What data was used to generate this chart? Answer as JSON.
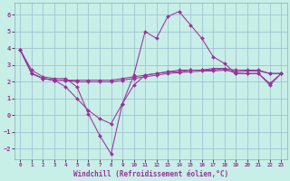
{
  "background_color": "#c8eee8",
  "grid_color": "#99bbcc",
  "line_color": "#993399",
  "xlim_min": -0.5,
  "xlim_max": 23.5,
  "ylim_min": -2.6,
  "ylim_max": 6.7,
  "xticks": [
    0,
    1,
    2,
    3,
    4,
    5,
    6,
    7,
    8,
    9,
    10,
    11,
    12,
    13,
    14,
    15,
    16,
    17,
    18,
    19,
    20,
    21,
    22,
    23
  ],
  "yticks": [
    -2,
    -1,
    0,
    1,
    2,
    3,
    4,
    5,
    6
  ],
  "xlabel": "Windchill (Refroidissement éolien,°C)",
  "series": [
    [
      3.9,
      2.7,
      2.3,
      2.2,
      2.2,
      1.7,
      0.1,
      -1.2,
      -2.3,
      0.7,
      2.4,
      5.0,
      4.6,
      5.9,
      6.2,
      5.4,
      4.6,
      3.5,
      3.1,
      2.5,
      2.5,
      2.5,
      1.8,
      2.5
    ],
    [
      3.9,
      2.5,
      2.2,
      2.1,
      1.7,
      1.0,
      0.3,
      -0.2,
      -0.5,
      0.7,
      1.8,
      2.4,
      2.5,
      2.6,
      2.7,
      2.7,
      2.7,
      2.8,
      2.8,
      2.5,
      2.5,
      2.5,
      1.9,
      2.5
    ],
    [
      3.9,
      2.5,
      2.2,
      2.1,
      2.1,
      2.1,
      2.1,
      2.1,
      2.1,
      2.2,
      2.3,
      2.4,
      2.5,
      2.6,
      2.6,
      2.7,
      2.7,
      2.7,
      2.8,
      2.7,
      2.7,
      2.7,
      2.5,
      2.5
    ],
    [
      3.9,
      2.5,
      2.2,
      2.1,
      2.1,
      2.0,
      2.0,
      2.0,
      2.0,
      2.1,
      2.2,
      2.3,
      2.4,
      2.5,
      2.55,
      2.6,
      2.65,
      2.65,
      2.7,
      2.6,
      2.65,
      2.65,
      2.5,
      2.5
    ]
  ]
}
